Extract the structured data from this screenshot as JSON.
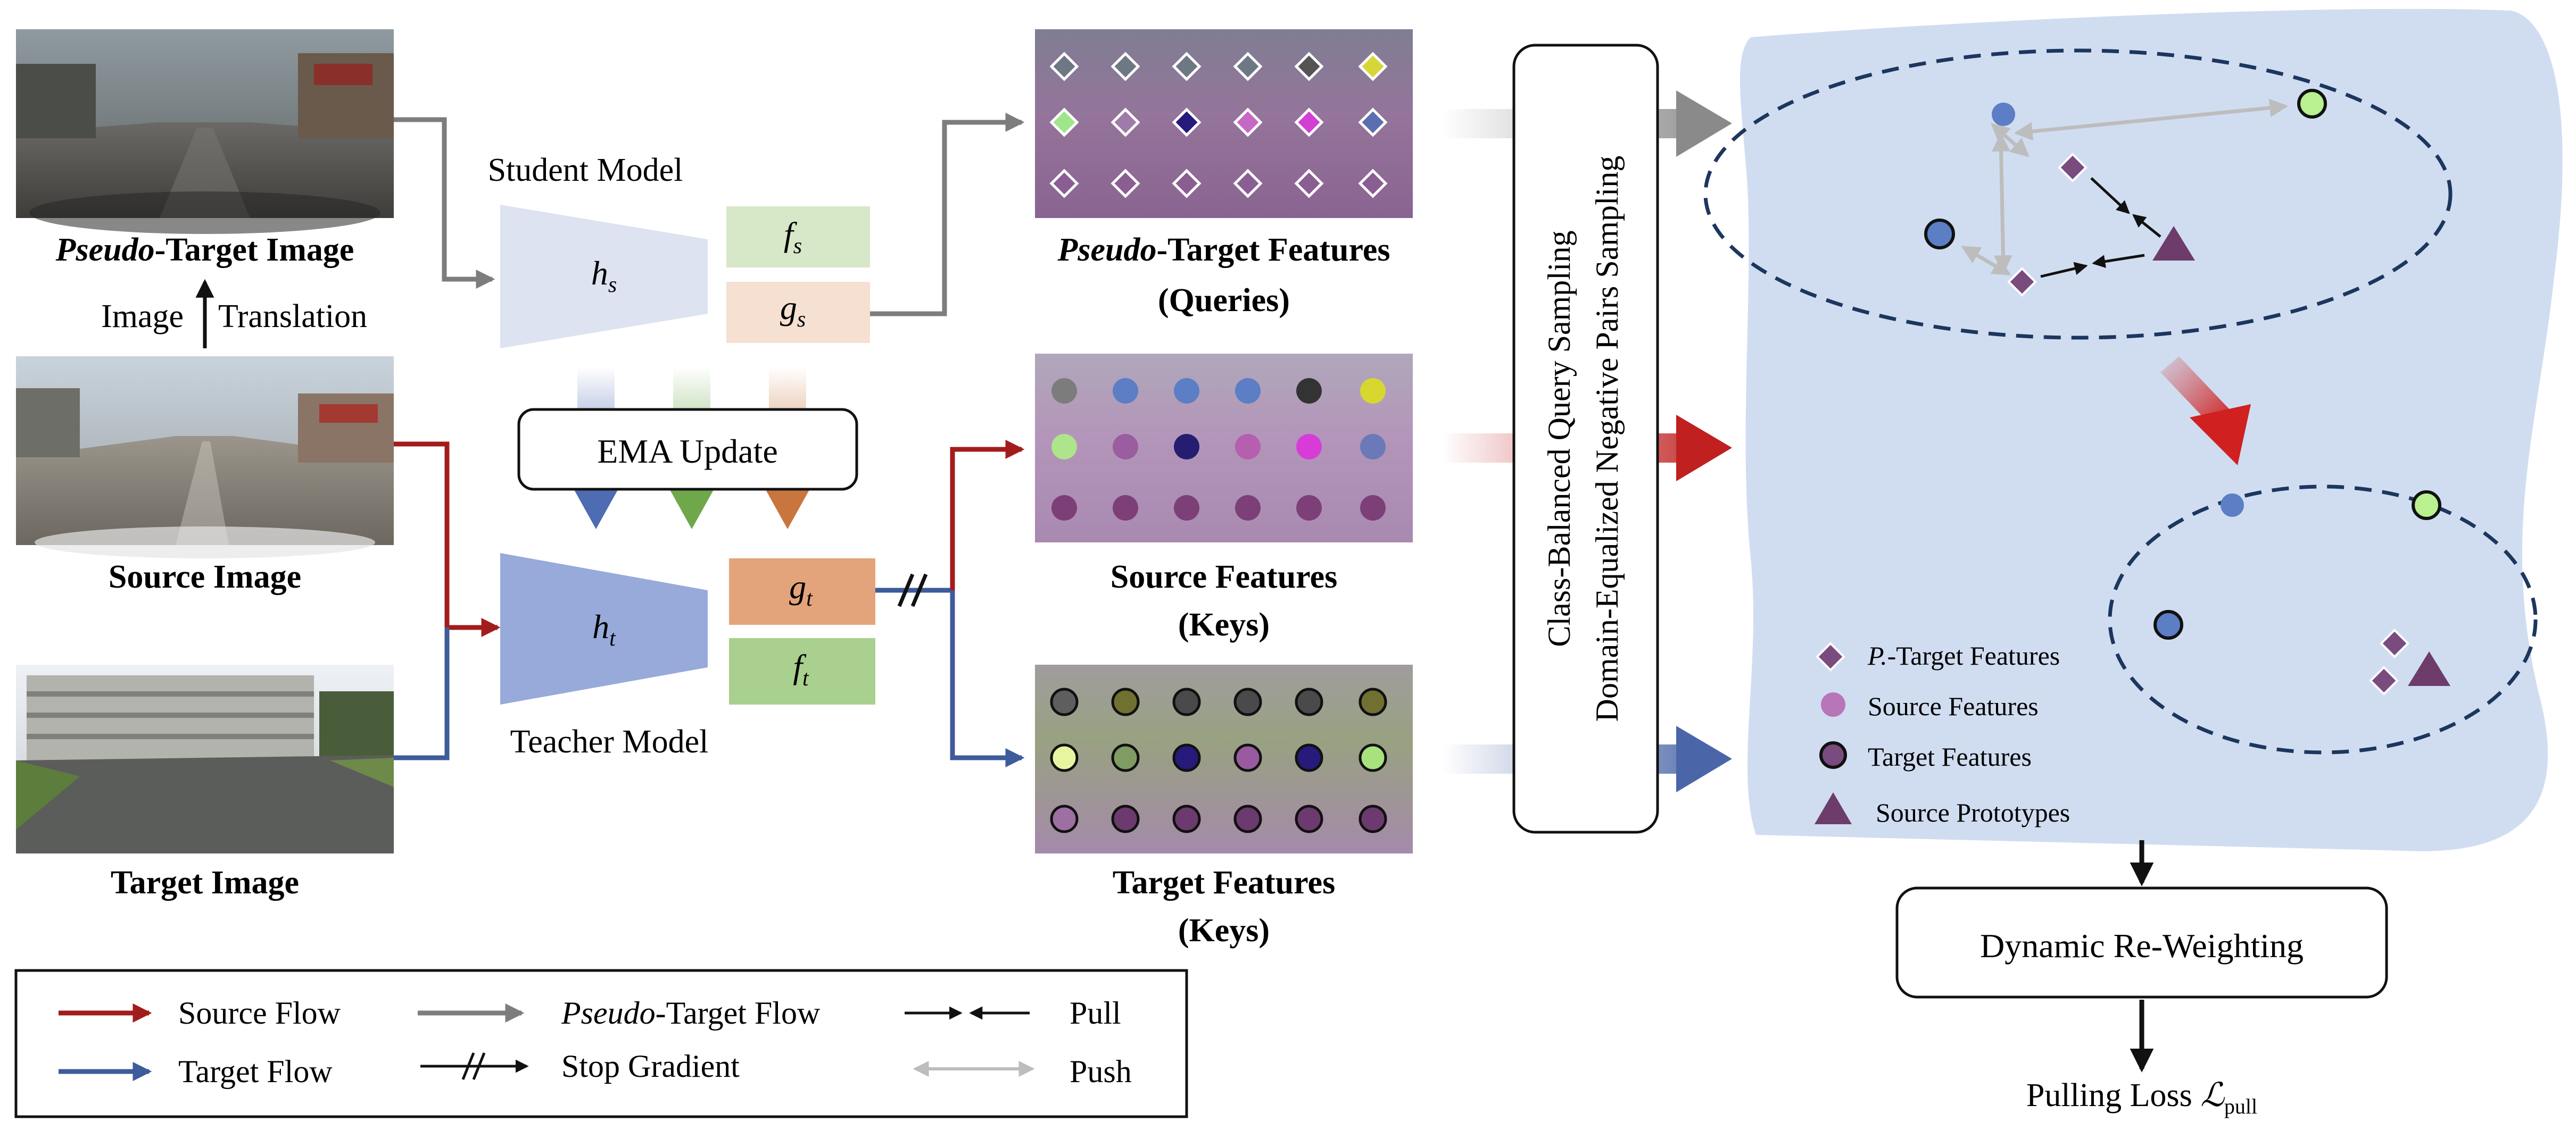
{
  "colors": {
    "source_flow": "#a31c1c",
    "target_flow": "#3e5b9a",
    "pseudo_flow": "#8a8a8a",
    "student_encoder": "#dde3f1",
    "teacher_encoder": "#97aad9",
    "fs_box": "#d6e8c8",
    "gs_box": "#f5e0d2",
    "gt_box": "#e3a47b",
    "ft_box": "#a9d08e",
    "embedding_bg": "#c8d7ee",
    "feature_purple": "#7a4b7e",
    "prototype_purple": "#6d3c6b"
  },
  "images": {
    "pseudo_target": {
      "caption_italic": "Pseudo",
      "caption_rest": "-Target Image"
    },
    "translation": {
      "left": "Image",
      "right": "Translation"
    },
    "source": {
      "caption": "Source Image"
    },
    "target": {
      "caption": "Target Image"
    }
  },
  "models": {
    "student": {
      "label": "Student Model",
      "encoder": "h",
      "encoder_sub": "s",
      "f": "f",
      "f_sub": "s",
      "g": "g",
      "g_sub": "s"
    },
    "teacher": {
      "label": "Teacher Model",
      "encoder": "h",
      "encoder_sub": "t",
      "g": "g",
      "g_sub": "t",
      "f": "f",
      "f_sub": "t"
    },
    "ema": "EMA Update"
  },
  "features": {
    "pseudo": {
      "line1_italic": "Pseudo",
      "line1_rest": "-Target Features",
      "line2": "(Queries)"
    },
    "source": {
      "line1": "Source Features",
      "line2": "(Keys)"
    },
    "target": {
      "line1": "Target Features",
      "line2": "(Keys)"
    }
  },
  "sampling": {
    "line1": "Class-Balanced Query Sampling",
    "line2": "Domain-Equalized Negative Pairs Sampling"
  },
  "embedding_legend": {
    "pseudo_italic": "P.",
    "pseudo_rest": "-Target Features",
    "source": "Source Features",
    "target": "Target Features",
    "prototypes": "Source Prototypes"
  },
  "reweight": "Dynamic Re-Weighting",
  "loss": {
    "label": "Pulling Loss ",
    "symbol": "ℒ",
    "sub": "pull"
  },
  "legend": {
    "source_flow": "Source Flow",
    "pseudo_flow_italic": "Pseudo",
    "pseudo_flow_rest": "-Target Flow",
    "pull": "Pull",
    "target_flow": "Target Flow",
    "stop_gradient": "Stop Gradient",
    "push": "Push"
  }
}
